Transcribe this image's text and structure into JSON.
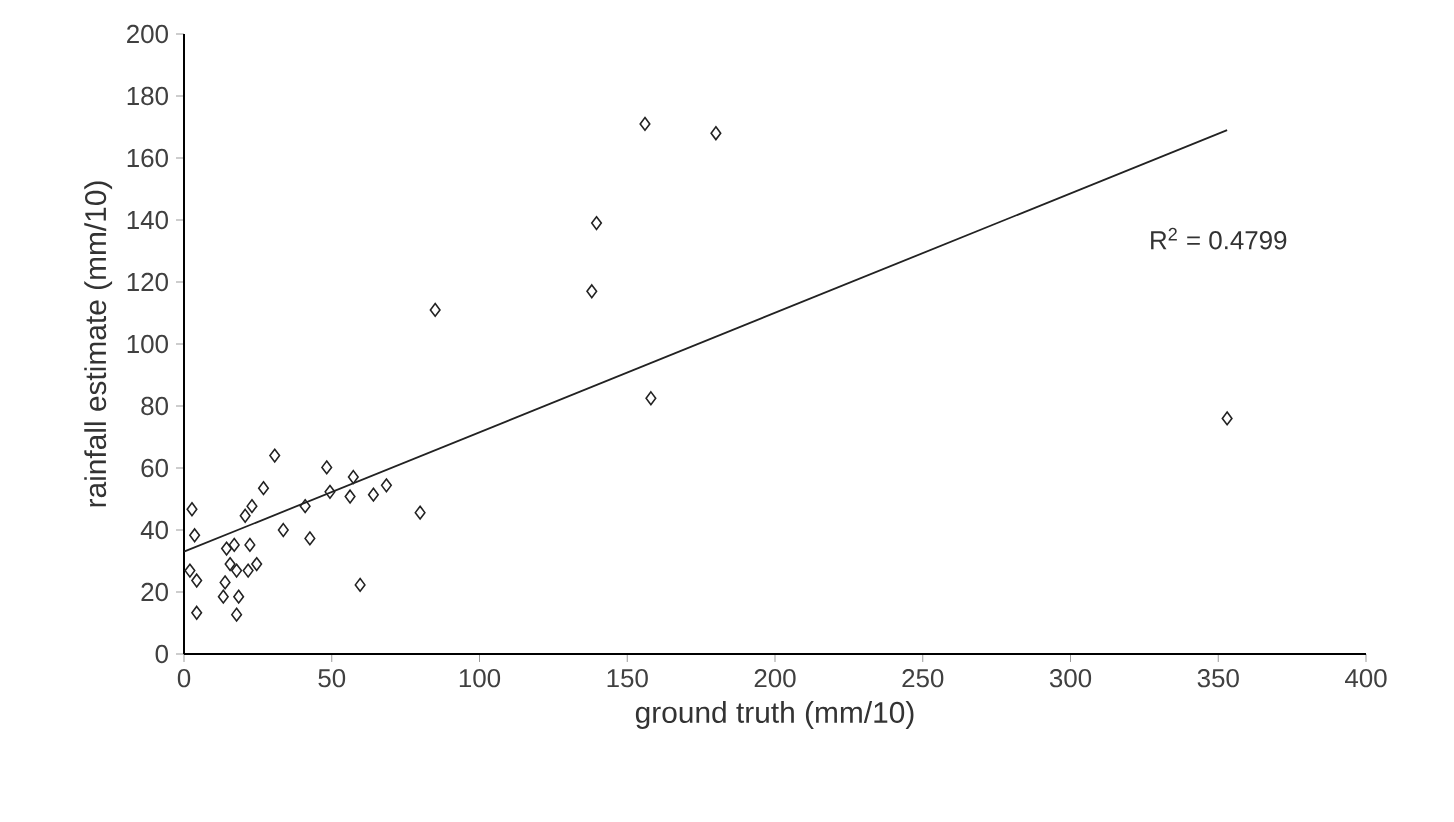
{
  "chart_data": {
    "type": "scatter",
    "xlabel": "ground truth (mm/10)",
    "ylabel": "rainfall estimate (mm/10)",
    "xlim": [
      0,
      400
    ],
    "ylim": [
      0,
      200
    ],
    "xticks": [
      0,
      50,
      100,
      150,
      200,
      250,
      300,
      350,
      400
    ],
    "yticks": [
      0,
      20,
      40,
      60,
      80,
      100,
      120,
      140,
      160,
      180,
      200
    ],
    "grid": false,
    "marker": "diamond",
    "annotations": [
      "R$^{2}$ = 0.4799"
    ],
    "series": [
      {
        "color": "#222222",
        "x": [
          156,
          180,
          139.6,
          138,
          85,
          158,
          353,
          2.7,
          3.6,
          2,
          4.3,
          4.3,
          30.7,
          26.9,
          23,
          20.7,
          14.4,
          17,
          15.6,
          17.8,
          13.9,
          13.3,
          18.5,
          17.8,
          22.3,
          24.6,
          21.7,
          33.6,
          41,
          42.6,
          48.3,
          49.4,
          56.2,
          57.3,
          64.1,
          68.5,
          79.9,
          59.6
        ],
        "values": [
          171,
          168,
          139,
          117,
          111,
          82.5,
          76,
          46.7,
          38.3,
          26.9,
          23.7,
          13.3,
          64,
          53.5,
          47.7,
          44.6,
          34,
          35.2,
          29,
          26.9,
          23.1,
          18.5,
          18.5,
          12.7,
          35.2,
          29,
          26.9,
          40,
          47.7,
          37.3,
          60.2,
          52.3,
          50.8,
          57.1,
          51.4,
          54.4,
          45.6,
          22.3
        ]
      },
      {
        "type": "line",
        "marker": "none",
        "line_style": "solid",
        "color": "#222222",
        "x": [
          0,
          353
        ],
        "values": [
          33,
          169
        ]
      }
    ]
  }
}
